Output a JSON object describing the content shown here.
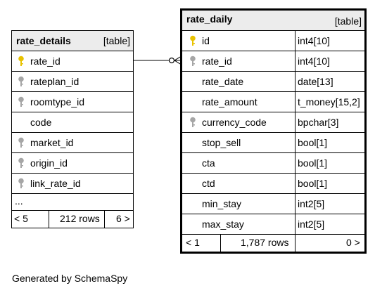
{
  "tables": {
    "rate_details": {
      "name": "rate_details",
      "kind": "[table]",
      "columns": [
        {
          "name": "rate_id",
          "key": "primary"
        },
        {
          "name": "rateplan_id",
          "key": "foreign"
        },
        {
          "name": "roomtype_id",
          "key": "foreign"
        },
        {
          "name": "code",
          "key": "none"
        },
        {
          "name": "market_id",
          "key": "foreign"
        },
        {
          "name": "origin_id",
          "key": "foreign"
        },
        {
          "name": "link_rate_id",
          "key": "foreign"
        }
      ],
      "more": "...",
      "footer": {
        "parents": "< 5",
        "rows": "212 rows",
        "children": "6 >"
      }
    },
    "rate_daily": {
      "name": "rate_daily",
      "kind": "[table]",
      "columns": [
        {
          "name": "id",
          "type": "int4[10]",
          "key": "primary"
        },
        {
          "name": "rate_id",
          "type": "int4[10]",
          "key": "foreign"
        },
        {
          "name": "rate_date",
          "type": "date[13]",
          "key": "none"
        },
        {
          "name": "rate_amount",
          "type": "t_money[15,2]",
          "key": "none"
        },
        {
          "name": "currency_code",
          "type": "bpchar[3]",
          "key": "foreign"
        },
        {
          "name": "stop_sell",
          "type": "bool[1]",
          "key": "none"
        },
        {
          "name": "cta",
          "type": "bool[1]",
          "key": "none"
        },
        {
          "name": "ctd",
          "type": "bool[1]",
          "key": "none"
        },
        {
          "name": "min_stay",
          "type": "int2[5]",
          "key": "none"
        },
        {
          "name": "max_stay",
          "type": "int2[5]",
          "key": "none"
        }
      ],
      "footer": {
        "parents": "< 1",
        "rows": "1,787 rows",
        "children": "0 >"
      }
    }
  },
  "generated_by": "Generated by SchemaSpy",
  "colors": {
    "primary_key": "#e8c200",
    "foreign_key": "#a6a6a6",
    "header_bg": "#ececec"
  }
}
